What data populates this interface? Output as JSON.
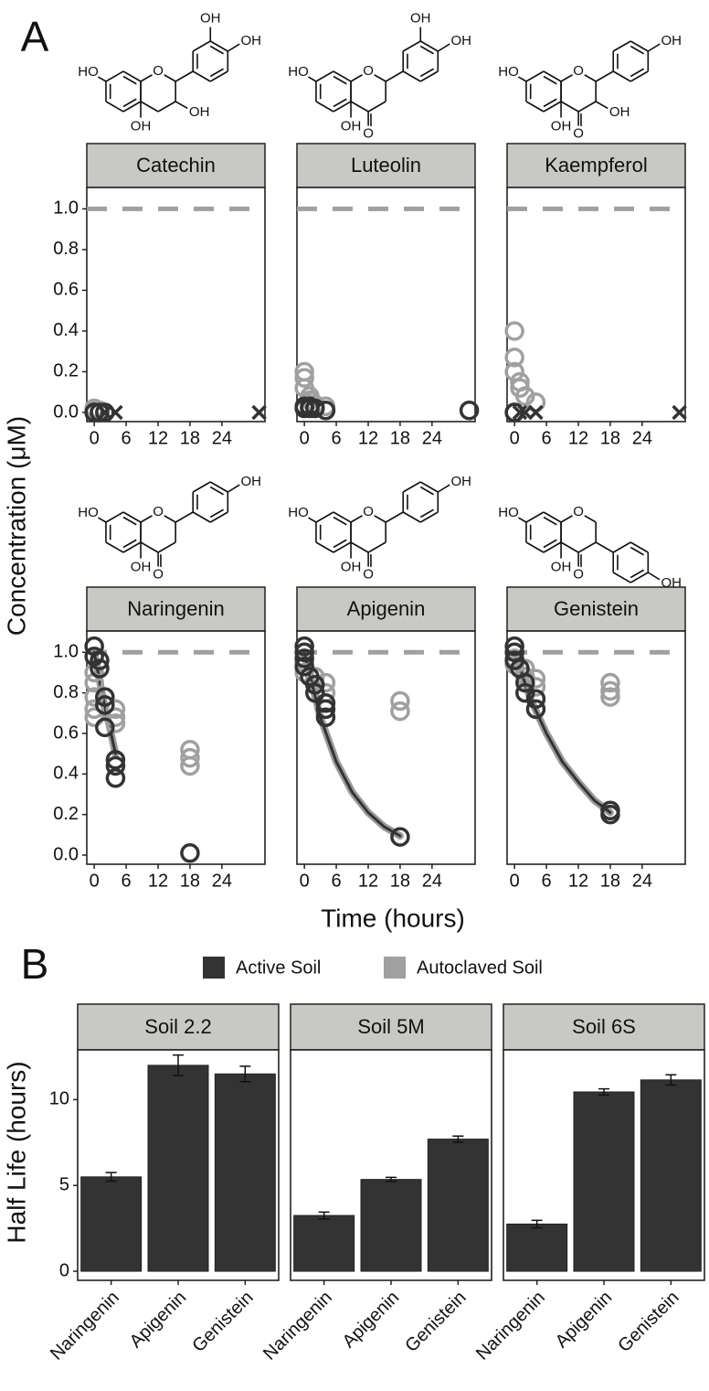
{
  "chart_data": [
    {
      "type": "scatter",
      "label": "A",
      "xlabel": "Time (hours)",
      "ylabel": "Concentration (μM)",
      "xlim": [
        -1.4,
        32.1
      ],
      "xticks": [
        0,
        6,
        12,
        18,
        24
      ],
      "ylim": [
        -0.045,
        1.105
      ],
      "yticks": [
        {
          "value": 0,
          "label": "0.0"
        },
        0.2,
        0.4,
        0.6,
        0.8,
        {
          "value": 1,
          "label": "1.0"
        }
      ],
      "reference_line": 1,
      "reference_color": "#a0a0a0",
      "series": [
        {
          "name": "Active Soil",
          "color": "#333333"
        },
        {
          "name": "Autoclaved Soil",
          "color": "#a0a0a0"
        }
      ],
      "facets": [
        {
          "title": "Catechin",
          "structure": [
            "OH",
            "OH",
            "HO",
            "O",
            "OH",
            "OH"
          ],
          "data": [
            {
              "x": [
                0,
                0,
                1,
                2,
                2,
                4,
                31
              ],
              "values": [
                0,
                0,
                0,
                0,
                0,
                0,
                0
              ],
              "markers": [
                "o",
                "o",
                "o",
                "o",
                "x",
                "x",
                "x"
              ]
            },
            {
              "x": [
                0,
                0,
                1
              ],
              "values": [
                0.02,
                0.01,
                0.01
              ]
            }
          ]
        },
        {
          "title": "Luteolin",
          "structure": [
            "OH",
            "OH",
            "HO",
            "O",
            "OH",
            "O"
          ],
          "data": [
            {
              "x": [
                0,
                0,
                1,
                1,
                2,
                4,
                31
              ],
              "values": [
                0.03,
                0.02,
                0.03,
                0.02,
                0.02,
                0.01,
                0.01
              ]
            },
            {
              "x": [
                0,
                0,
                0,
                1,
                1,
                2,
                4
              ],
              "values": [
                0.2,
                0.17,
                0.12,
                0.08,
                0.06,
                0.04,
                0.03
              ]
            }
          ]
        },
        {
          "title": "Kaempferol",
          "structure": [
            "OH",
            "HO",
            "O",
            "OH",
            "OH",
            "O"
          ],
          "data": [
            {
              "x": [
                0,
                0,
                1,
                2,
                4,
                31
              ],
              "values": [
                0,
                0,
                0,
                0,
                0,
                0
              ],
              "markers": [
                "o",
                "o",
                "x",
                "x",
                "x",
                "x"
              ]
            },
            {
              "x": [
                0,
                0,
                0,
                1,
                1,
                2,
                4
              ],
              "values": [
                0.4,
                0.27,
                0.2,
                0.15,
                0.12,
                0.08,
                0.05
              ]
            }
          ]
        },
        {
          "title": "Naringenin",
          "structure": [
            "OH",
            "HO",
            "O",
            "OH",
            "O"
          ],
          "data": [
            {
              "x": [
                0,
                0,
                1,
                1,
                2,
                2,
                2,
                4,
                4,
                4,
                18
              ],
              "values": [
                1.03,
                0.98,
                0.96,
                0.92,
                0.78,
                0.74,
                0.63,
                0.47,
                0.44,
                0.38,
                0.01
              ]
            },
            {
              "x": [
                0,
                0,
                0,
                0,
                0,
                4,
                4,
                4,
                18,
                18,
                18
              ],
              "values": [
                0.9,
                0.85,
                0.78,
                0.72,
                0.68,
                0.72,
                0.68,
                0.65,
                0.52,
                0.48,
                0.44
              ]
            }
          ],
          "fit": {
            "x": [
              0,
              1,
              2,
              3,
              4
            ],
            "values": [
              1,
              0.86,
              0.73,
              0.62,
              0.5
            ]
          }
        },
        {
          "title": "Apigenin",
          "structure": [
            "OH",
            "HO",
            "O",
            "OH",
            "O"
          ],
          "data": [
            {
              "x": [
                0,
                0,
                0,
                0,
                1,
                2,
                2,
                4,
                4,
                4,
                18
              ],
              "values": [
                1.03,
                1.0,
                0.97,
                0.93,
                0.88,
                0.84,
                0.8,
                0.75,
                0.72,
                0.68,
                0.09
              ]
            },
            {
              "x": [
                0,
                0,
                2,
                4,
                4,
                18,
                18
              ],
              "values": [
                0.95,
                0.9,
                0.88,
                0.85,
                0.8,
                0.76,
                0.71
              ]
            }
          ],
          "fit": {
            "x": [
              0,
              3,
              6,
              9,
              12,
              15,
              18
            ],
            "values": [
              1,
              0.68,
              0.46,
              0.31,
              0.21,
              0.14,
              0.095
            ]
          }
        },
        {
          "title": "Genistein",
          "structure": [
            "HO",
            "O",
            "OH",
            "O",
            "OH"
          ],
          "data": [
            {
              "x": [
                0,
                0,
                0,
                1,
                2,
                2,
                4,
                4,
                18,
                18
              ],
              "values": [
                1.03,
                1.0,
                0.96,
                0.92,
                0.85,
                0.8,
                0.77,
                0.72,
                0.22,
                0.2
              ]
            },
            {
              "x": [
                0,
                0,
                2,
                2,
                4,
                4,
                18,
                18,
                18
              ],
              "values": [
                0.97,
                0.94,
                0.92,
                0.88,
                0.87,
                0.83,
                0.85,
                0.81,
                0.78
              ]
            }
          ],
          "fit": {
            "x": [
              0,
              3,
              6,
              9,
              12,
              15,
              18
            ],
            "values": [
              1,
              0.77,
              0.6,
              0.46,
              0.36,
              0.27,
              0.21
            ]
          }
        }
      ]
    },
    {
      "type": "bar",
      "label": "B",
      "ylabel": "Half Life (hours)",
      "categories": [
        "Naringenin",
        "Apigenin",
        "Genistein"
      ],
      "color": "#333333",
      "ylim": [
        -0.53,
        12.9
      ],
      "yticks": [
        0,
        5,
        10
      ],
      "facets": [
        {
          "title": "Soil 2.2",
          "values": [
            5.5,
            12.0,
            11.5
          ],
          "errors": [
            0.25,
            0.6,
            0.45
          ]
        },
        {
          "title": "Soil 5M",
          "values": [
            3.25,
            5.35,
            7.7
          ],
          "errors": [
            0.2,
            0.12,
            0.18
          ]
        },
        {
          "title": "Soil 6S",
          "values": [
            2.75,
            10.45,
            11.15
          ],
          "errors": [
            0.22,
            0.18,
            0.3
          ]
        }
      ]
    }
  ]
}
